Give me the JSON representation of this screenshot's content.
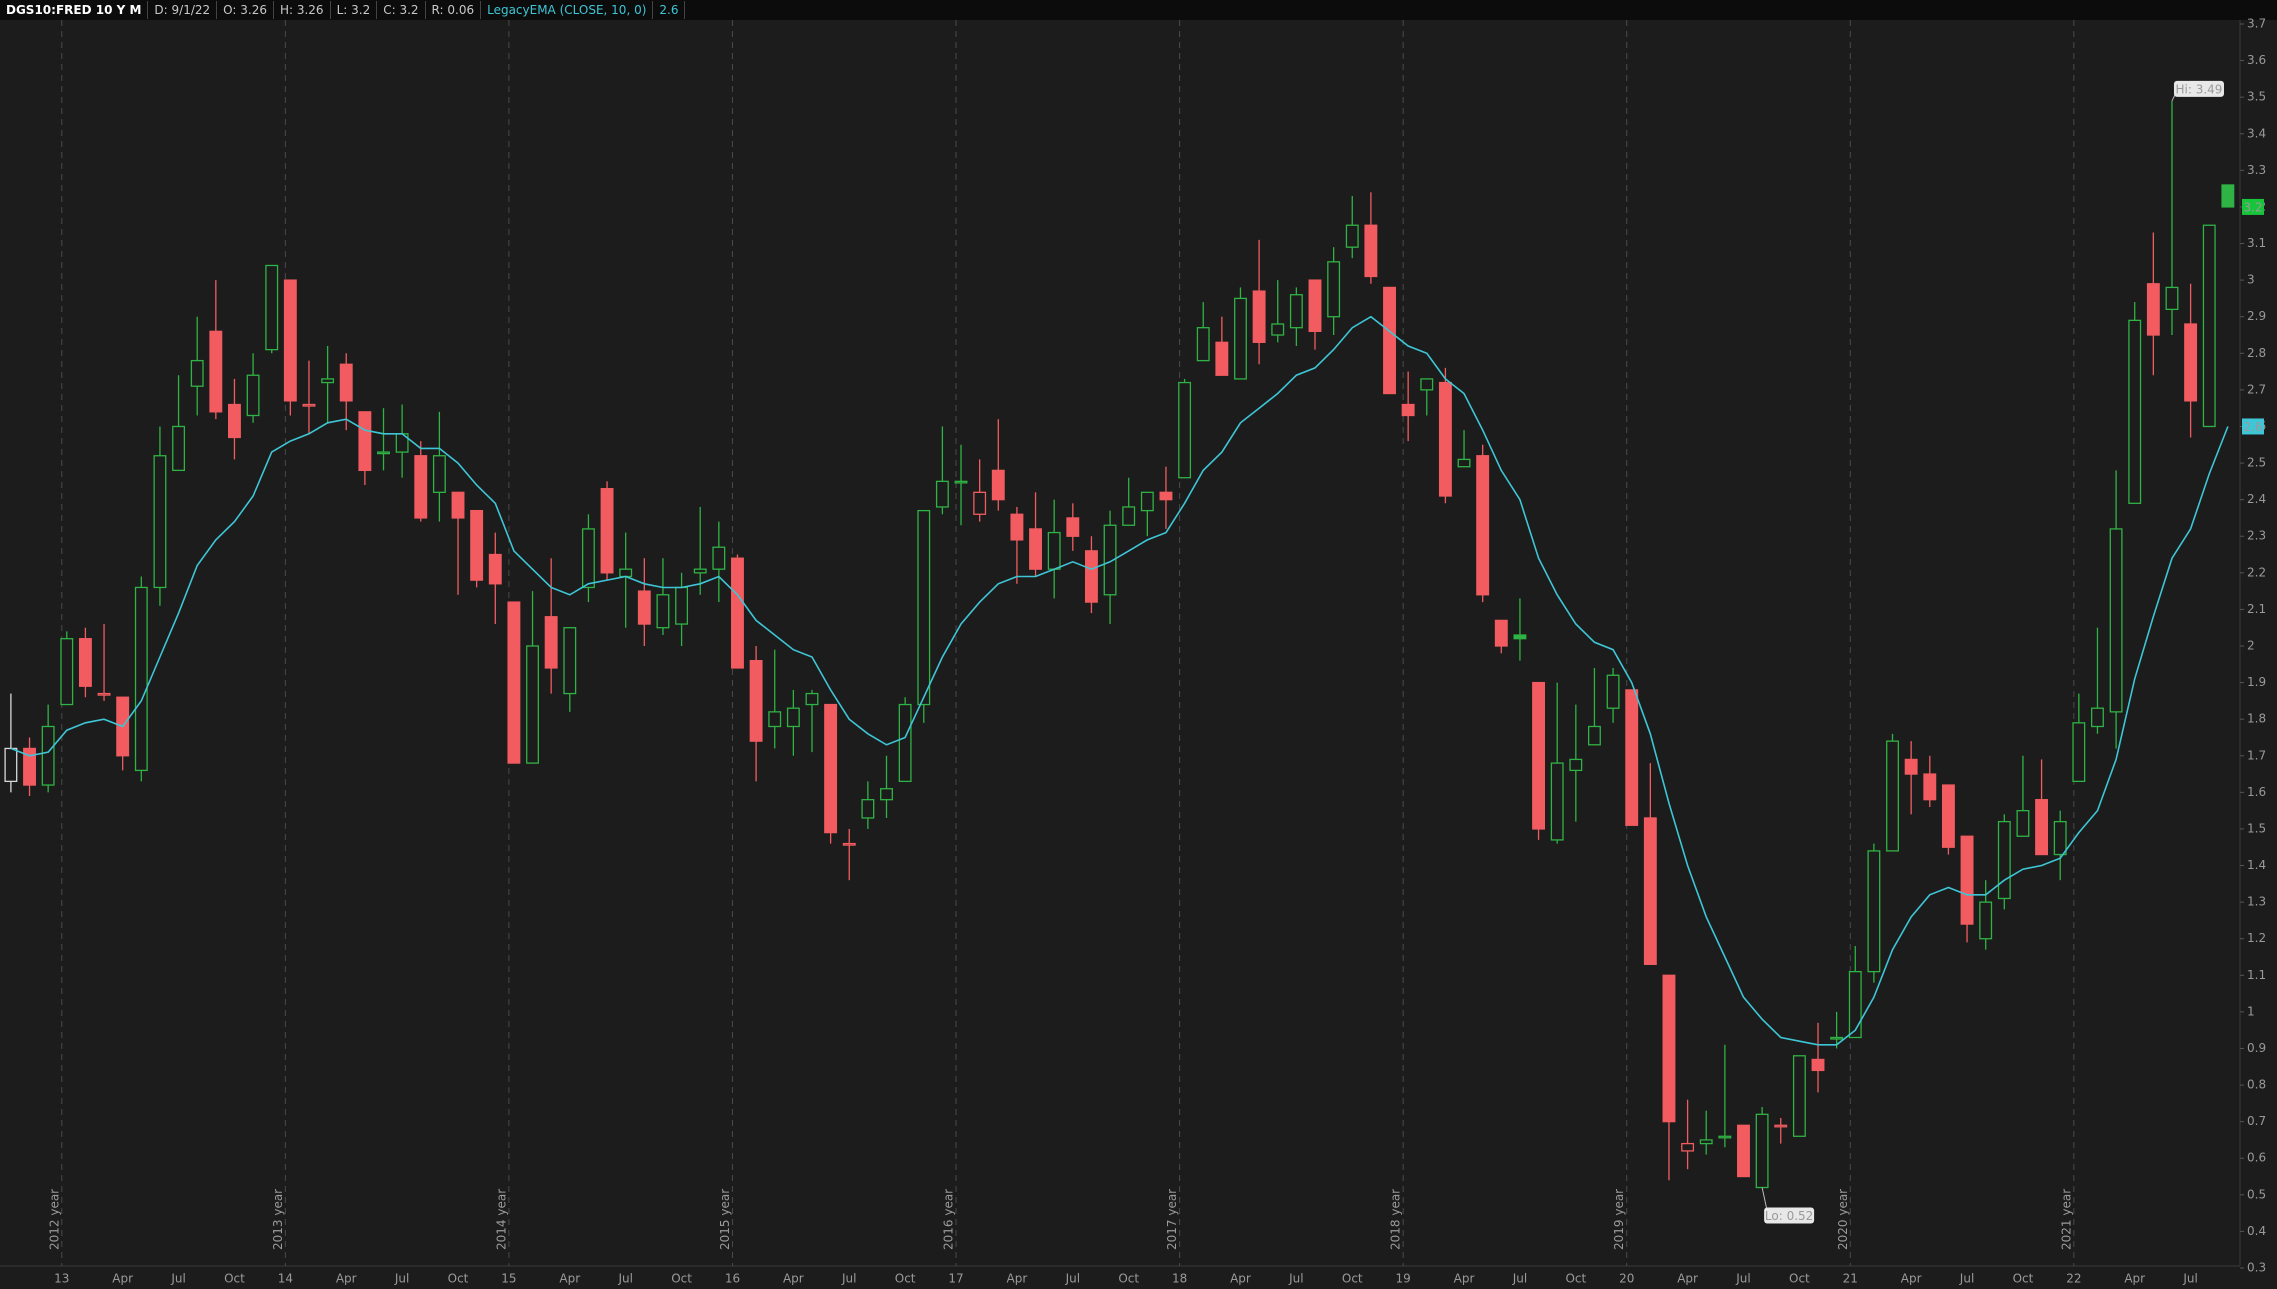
{
  "chart_data": {
    "type": "candlestick",
    "title": "DGS10:FRED 10 Y M",
    "header": [
      "D: 9/1/22",
      "O: 3.26",
      "H: 3.26",
      "L: 3.2",
      "C: 3.2",
      "R: 0.06"
    ],
    "up_color": "#2fb344",
    "down_color": "#f25c60",
    "first_color": "#d8d8d8",
    "categories": [
      null,
      null,
      null,
      "13",
      null,
      null,
      "Apr",
      null,
      null,
      "Jul",
      null,
      null,
      "Oct",
      null,
      null,
      "14",
      null,
      null,
      "Apr",
      null,
      null,
      "Jul",
      null,
      null,
      "Oct",
      null,
      null,
      "15",
      null,
      null,
      "Apr",
      null,
      null,
      "Jul",
      null,
      null,
      "Oct",
      null,
      null,
      "16",
      null,
      null,
      "Apr",
      null,
      null,
      "Jul",
      null,
      null,
      "Oct",
      null,
      null,
      "17",
      null,
      null,
      "Apr",
      null,
      null,
      "Jul",
      null,
      null,
      "Oct",
      null,
      null,
      "18",
      null,
      null,
      "Apr",
      null,
      null,
      "Jul",
      null,
      null,
      "Oct",
      null,
      null,
      "19",
      null,
      null,
      "Apr",
      null,
      null,
      "Jul",
      null,
      null,
      "Oct",
      null,
      null,
      "20",
      null,
      null,
      "Apr",
      null,
      null,
      "Jul",
      null,
      null,
      "Oct",
      null,
      null,
      "21",
      null,
      null,
      "Apr",
      null,
      null,
      "Jul",
      null,
      null,
      "Oct",
      null,
      null,
      "22",
      null,
      null,
      "Apr",
      null,
      null,
      "Jul",
      null,
      null
    ],
    "open": [
      1.63,
      1.72,
      1.62,
      1.84,
      2.02,
      1.87,
      1.86,
      1.66,
      2.16,
      2.48,
      2.71,
      2.86,
      2.66,
      2.63,
      2.81,
      3.0,
      2.66,
      2.72,
      2.77,
      2.64,
      2.53,
      2.53,
      2.52,
      2.42,
      2.42,
      2.37,
      2.25,
      2.12,
      1.68,
      2.08,
      1.87,
      2.16,
      2.43,
      2.19,
      2.15,
      2.05,
      2.06,
      2.2,
      2.21,
      2.24,
      1.96,
      1.78,
      1.78,
      1.84,
      1.84,
      1.46,
      1.53,
      1.58,
      1.63,
      1.84,
      2.38,
      2.45,
      2.36,
      2.48,
      2.36,
      2.32,
      2.21,
      2.35,
      2.26,
      2.14,
      2.33,
      2.37,
      2.42,
      2.46,
      2.78,
      2.83,
      2.73,
      2.97,
      2.85,
      2.87,
      3.0,
      2.9,
      3.09,
      3.15,
      2.98,
      2.66,
      2.7,
      2.72,
      2.49,
      2.52,
      2.07,
      2.03,
      1.9,
      1.47,
      1.66,
      1.73,
      1.83,
      1.88,
      1.53,
      1.1,
      0.62,
      0.64,
      0.66,
      0.69,
      0.52,
      0.69,
      0.66,
      0.87,
      0.93,
      0.93,
      1.11,
      1.44,
      1.69,
      1.65,
      1.62,
      1.48,
      1.2,
      1.31,
      1.48,
      1.58,
      1.43,
      1.63,
      1.78,
      1.82,
      2.39,
      2.99,
      2.92,
      2.88,
      2.6,
      3.26
    ],
    "high": [
      1.87,
      1.75,
      1.84,
      2.04,
      2.05,
      2.06,
      1.86,
      2.19,
      2.6,
      2.74,
      2.9,
      3.0,
      2.73,
      2.8,
      3.04,
      3.0,
      2.78,
      2.82,
      2.8,
      2.64,
      2.65,
      2.66,
      2.56,
      2.64,
      2.42,
      2.37,
      2.31,
      2.12,
      2.15,
      2.24,
      2.05,
      2.36,
      2.45,
      2.31,
      2.24,
      2.24,
      2.2,
      2.38,
      2.34,
      2.25,
      2.0,
      1.99,
      1.88,
      1.88,
      1.84,
      1.5,
      1.63,
      1.7,
      1.86,
      2.37,
      2.6,
      2.55,
      2.51,
      2.62,
      2.38,
      2.42,
      2.4,
      2.39,
      2.3,
      2.37,
      2.46,
      2.42,
      2.49,
      2.73,
      2.94,
      2.9,
      2.98,
      3.11,
      3.0,
      2.98,
      3.0,
      3.09,
      3.23,
      3.24,
      2.98,
      2.75,
      2.73,
      2.76,
      2.59,
      2.55,
      2.07,
      2.13,
      1.9,
      1.9,
      1.84,
      1.94,
      1.94,
      1.88,
      1.68,
      1.1,
      0.76,
      0.73,
      0.91,
      0.69,
      0.74,
      0.71,
      0.88,
      0.97,
      1.0,
      1.18,
      1.46,
      1.76,
      1.74,
      1.7,
      1.62,
      1.48,
      1.36,
      1.54,
      1.7,
      1.69,
      1.55,
      1.87,
      2.05,
      2.48,
      2.94,
      3.13,
      3.49,
      2.99,
      3.15,
      3.26
    ],
    "low": [
      1.6,
      1.59,
      1.6,
      1.84,
      1.86,
      1.85,
      1.66,
      1.63,
      2.11,
      2.48,
      2.63,
      2.62,
      2.51,
      2.61,
      2.8,
      2.63,
      2.58,
      2.61,
      2.59,
      2.44,
      2.48,
      2.46,
      2.34,
      2.34,
      2.14,
      2.16,
      2.06,
      1.68,
      1.68,
      1.87,
      1.82,
      2.12,
      2.18,
      2.05,
      2.0,
      2.03,
      2.0,
      2.14,
      2.12,
      1.94,
      1.63,
      1.72,
      1.7,
      1.71,
      1.46,
      1.36,
      1.5,
      1.53,
      1.63,
      1.79,
      2.36,
      2.33,
      2.34,
      2.37,
      2.17,
      2.19,
      2.13,
      2.26,
      2.09,
      2.06,
      2.33,
      2.3,
      2.32,
      2.46,
      2.78,
      2.74,
      2.73,
      2.77,
      2.83,
      2.82,
      2.81,
      2.85,
      3.06,
      2.99,
      2.69,
      2.56,
      2.63,
      2.39,
      2.49,
      2.12,
      1.98,
      1.96,
      1.47,
      1.46,
      1.52,
      1.73,
      1.79,
      1.51,
      1.13,
      0.54,
      0.57,
      0.61,
      0.63,
      0.55,
      0.52,
      0.64,
      0.66,
      0.78,
      0.9,
      0.93,
      1.08,
      1.44,
      1.54,
      1.56,
      1.43,
      1.19,
      1.17,
      1.28,
      1.48,
      1.43,
      1.36,
      1.63,
      1.76,
      1.72,
      2.39,
      2.74,
      2.85,
      2.57,
      2.6,
      3.2
    ],
    "close": [
      1.72,
      1.62,
      1.78,
      2.02,
      1.89,
      1.87,
      1.7,
      2.16,
      2.52,
      2.6,
      2.78,
      2.64,
      2.57,
      2.74,
      3.04,
      2.67,
      2.66,
      2.73,
      2.67,
      2.48,
      2.53,
      2.58,
      2.35,
      2.52,
      2.35,
      2.18,
      2.17,
      1.68,
      2.0,
      1.94,
      2.05,
      2.32,
      2.2,
      2.21,
      2.06,
      2.14,
      2.16,
      2.21,
      2.27,
      1.94,
      1.74,
      1.82,
      1.83,
      1.87,
      1.49,
      1.46,
      1.58,
      1.61,
      1.84,
      2.37,
      2.45,
      2.45,
      2.42,
      2.4,
      2.29,
      2.21,
      2.31,
      2.3,
      2.12,
      2.33,
      2.38,
      2.42,
      2.4,
      2.72,
      2.87,
      2.74,
      2.95,
      2.83,
      2.88,
      2.96,
      2.86,
      3.05,
      3.15,
      3.01,
      2.69,
      2.63,
      2.73,
      2.41,
      2.51,
      2.14,
      2.0,
      2.02,
      1.5,
      1.68,
      1.69,
      1.78,
      1.92,
      1.51,
      1.13,
      0.7,
      0.64,
      0.65,
      0.66,
      0.55,
      0.72,
      0.69,
      0.88,
      0.84,
      0.93,
      1.11,
      1.44,
      1.74,
      1.65,
      1.58,
      1.45,
      1.24,
      1.3,
      1.52,
      1.55,
      1.43,
      1.52,
      1.79,
      1.83,
      2.32,
      2.89,
      2.85,
      2.98,
      2.67,
      3.15,
      3.2
    ],
    "indicator": {
      "name": "LegacyEMA (CLOSE, 10, 0)",
      "value": 2.6,
      "color": "#3ec6d6",
      "values": [
        1.72,
        1.7,
        1.71,
        1.77,
        1.79,
        1.8,
        1.78,
        1.85,
        1.97,
        2.09,
        2.22,
        2.29,
        2.34,
        2.41,
        2.53,
        2.56,
        2.58,
        2.61,
        2.62,
        2.59,
        2.58,
        2.58,
        2.54,
        2.54,
        2.5,
        2.44,
        2.39,
        2.26,
        2.21,
        2.16,
        2.14,
        2.17,
        2.18,
        2.19,
        2.17,
        2.16,
        2.16,
        2.17,
        2.19,
        2.14,
        2.07,
        2.03,
        1.99,
        1.97,
        1.88,
        1.8,
        1.76,
        1.73,
        1.75,
        1.86,
        1.97,
        2.06,
        2.12,
        2.17,
        2.19,
        2.19,
        2.21,
        2.23,
        2.21,
        2.23,
        2.26,
        2.29,
        2.31,
        2.39,
        2.48,
        2.53,
        2.61,
        2.65,
        2.69,
        2.74,
        2.76,
        2.81,
        2.87,
        2.9,
        2.86,
        2.82,
        2.8,
        2.73,
        2.69,
        2.59,
        2.48,
        2.4,
        2.24,
        2.14,
        2.06,
        2.01,
        1.99,
        1.9,
        1.76,
        1.57,
        1.4,
        1.26,
        1.15,
        1.04,
        0.98,
        0.93,
        0.92,
        0.91,
        0.91,
        0.95,
        1.04,
        1.17,
        1.26,
        1.32,
        1.34,
        1.32,
        1.32,
        1.36,
        1.39,
        1.4,
        1.42,
        1.49,
        1.55,
        1.69,
        1.91,
        2.08,
        2.24,
        2.32,
        2.47,
        2.6
      ]
    },
    "price_marker": {
      "value": 3.2,
      "color": "#17c43a"
    },
    "annotations": [
      "Hi: 3.49",
      "Lo: 0.52"
    ],
    "year_labels": [
      "2012 year",
      "2013 year",
      "2014 year",
      "2015 year",
      "2016 year",
      "2017 year",
      "2018 year",
      "2019 year",
      "2020 year",
      "2021 year"
    ],
    "ylim": [
      0.3,
      3.7
    ],
    "yticks": [
      0.3,
      0.4,
      0.5,
      0.6,
      0.7,
      0.8,
      0.9,
      1,
      1.1,
      1.2,
      1.3,
      1.4,
      1.5,
      1.6,
      1.7,
      1.8,
      1.9,
      2,
      2.1,
      2.2,
      2.3,
      2.4,
      2.5,
      2.6,
      2.7,
      2.8,
      2.9,
      3,
      3.1,
      3.2,
      3.3,
      3.4,
      3.5,
      3.6,
      3.7
    ]
  }
}
